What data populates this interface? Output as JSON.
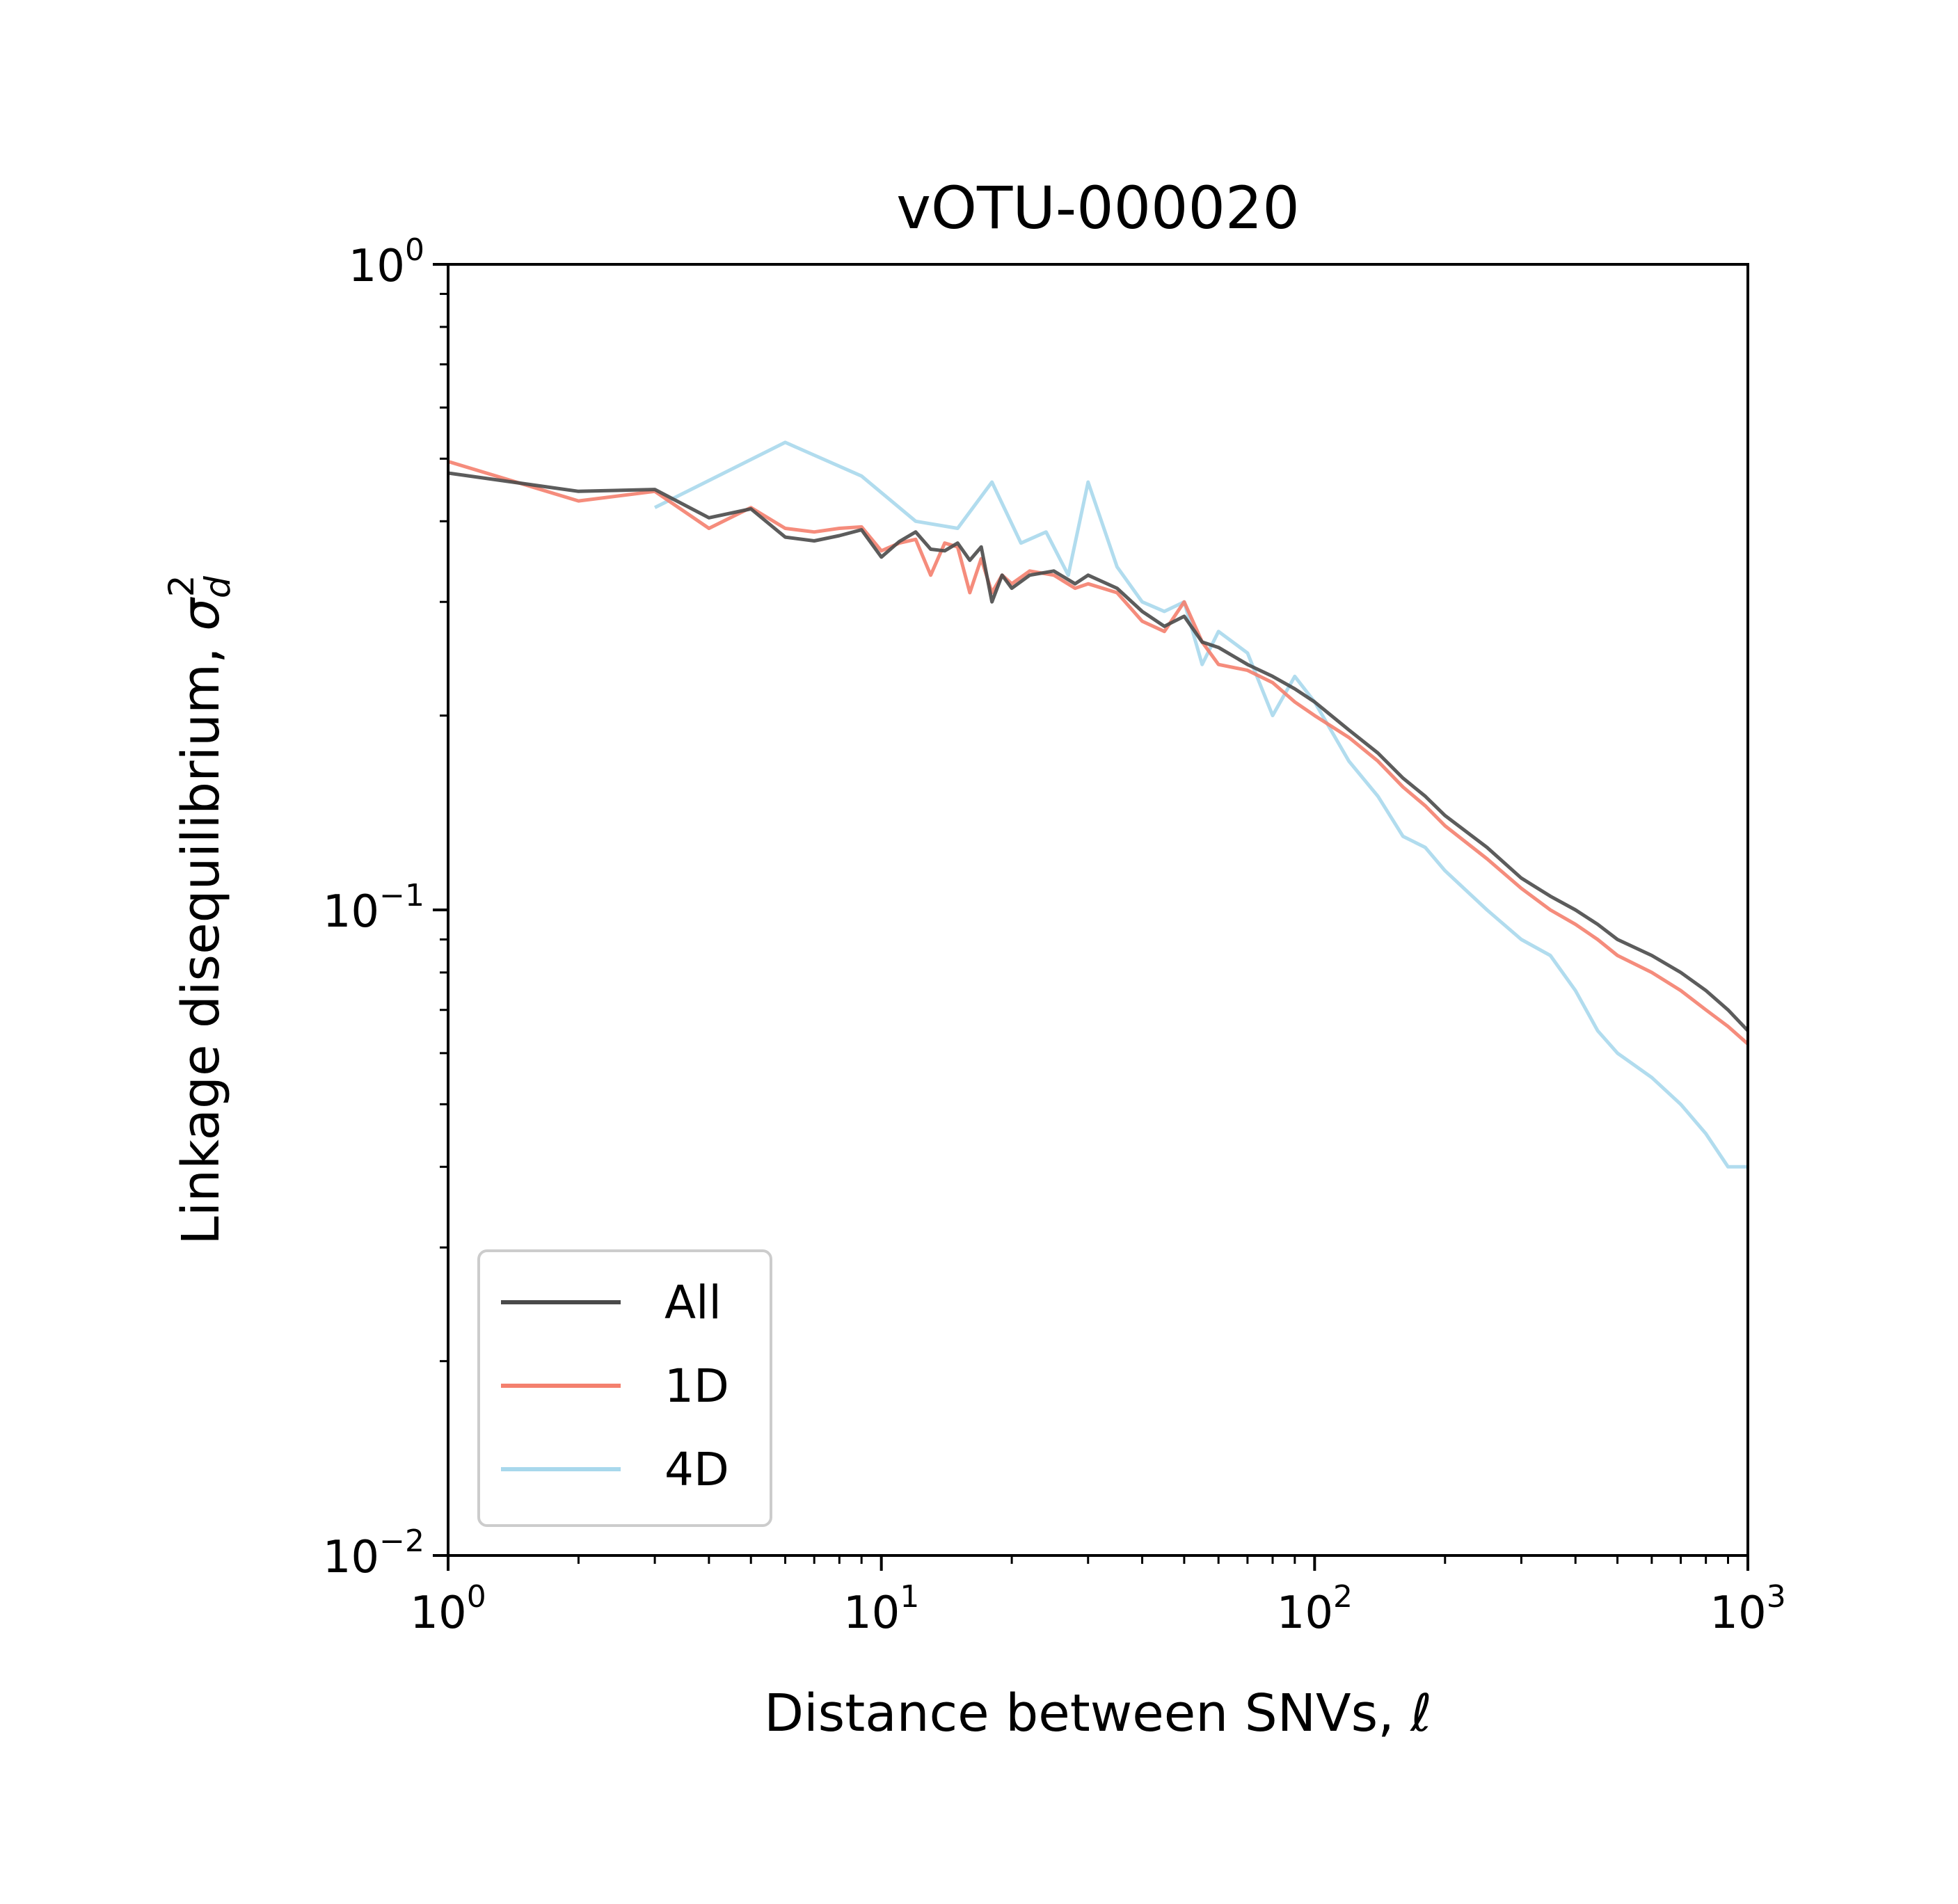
{
  "chart_data": {
    "type": "line",
    "title": "vOTU-000020",
    "xlabel": "Distance between SNVs, ℓ",
    "ylabel_prefix": "Linkage disequilibrium, ",
    "ylabel_symbol": "σ",
    "ylabel_sub": "d",
    "ylabel_sup": "2",
    "xscale": "log",
    "yscale": "log",
    "xlim": [
      1,
      1000
    ],
    "ylim": [
      0.01,
      1
    ],
    "x_ticks": [
      {
        "base": "10",
        "exp": "0"
      },
      {
        "base": "10",
        "exp": "1"
      },
      {
        "base": "10",
        "exp": "2"
      },
      {
        "base": "10",
        "exp": "3"
      }
    ],
    "y_ticks": [
      {
        "base": "10",
        "exp": "−2"
      },
      {
        "base": "10",
        "exp": "−1"
      },
      {
        "base": "10",
        "exp": "0"
      }
    ],
    "grid": false,
    "legend_position": "lower-left",
    "series": [
      {
        "name": "All",
        "color": "#4a4a4a",
        "x": [
          1,
          2,
          3,
          4,
          5,
          6,
          7,
          8,
          9,
          10,
          11,
          12,
          13,
          14,
          15,
          16,
          17,
          18,
          19,
          20,
          22,
          25,
          28,
          30,
          35,
          40,
          45,
          50,
          55,
          60,
          70,
          80,
          90,
          100,
          120,
          140,
          160,
          180,
          200,
          250,
          300,
          350,
          400,
          450,
          500,
          600,
          700,
          800,
          900,
          1000
        ],
        "y": [
          0.475,
          0.445,
          0.448,
          0.405,
          0.418,
          0.378,
          0.373,
          0.38,
          0.388,
          0.352,
          0.372,
          0.385,
          0.362,
          0.36,
          0.37,
          0.348,
          0.365,
          0.3,
          0.33,
          0.315,
          0.33,
          0.335,
          0.32,
          0.33,
          0.315,
          0.29,
          0.275,
          0.285,
          0.26,
          0.255,
          0.24,
          0.23,
          0.22,
          0.21,
          0.19,
          0.175,
          0.16,
          0.15,
          0.14,
          0.125,
          0.112,
          0.105,
          0.1,
          0.095,
          0.09,
          0.085,
          0.08,
          0.075,
          0.07,
          0.065
        ]
      },
      {
        "name": "1D",
        "color": "#f4806e",
        "x": [
          1,
          2,
          3,
          4,
          5,
          6,
          7,
          8,
          9,
          10,
          11,
          12,
          13,
          14,
          15,
          16,
          17,
          18,
          19,
          20,
          22,
          25,
          28,
          30,
          35,
          40,
          45,
          50,
          55,
          60,
          70,
          80,
          90,
          100,
          120,
          140,
          160,
          180,
          200,
          250,
          300,
          350,
          400,
          450,
          500,
          600,
          700,
          800,
          900,
          1000
        ],
        "y": [
          0.495,
          0.43,
          0.445,
          0.39,
          0.42,
          0.39,
          0.385,
          0.39,
          0.392,
          0.36,
          0.37,
          0.375,
          0.33,
          0.37,
          0.365,
          0.31,
          0.35,
          0.31,
          0.33,
          0.32,
          0.335,
          0.33,
          0.315,
          0.32,
          0.31,
          0.28,
          0.27,
          0.3,
          0.26,
          0.24,
          0.235,
          0.225,
          0.21,
          0.2,
          0.185,
          0.17,
          0.155,
          0.145,
          0.135,
          0.12,
          0.108,
          0.1,
          0.095,
          0.09,
          0.085,
          0.08,
          0.075,
          0.07,
          0.066,
          0.062
        ]
      },
      {
        "name": "4D",
        "color": "#a8d8ec",
        "x": [
          3,
          6,
          9,
          12,
          15,
          18,
          21,
          24,
          27,
          30,
          35,
          40,
          45,
          50,
          55,
          60,
          70,
          80,
          90,
          100,
          120,
          140,
          160,
          180,
          200,
          250,
          300,
          350,
          400,
          450,
          500,
          600,
          700,
          800,
          900,
          1000
        ],
        "y": [
          0.42,
          0.53,
          0.47,
          0.4,
          0.39,
          0.46,
          0.37,
          0.385,
          0.33,
          0.46,
          0.34,
          0.3,
          0.29,
          0.3,
          0.24,
          0.27,
          0.25,
          0.2,
          0.23,
          0.21,
          0.17,
          0.15,
          0.13,
          0.125,
          0.115,
          0.1,
          0.09,
          0.085,
          0.075,
          0.065,
          0.06,
          0.055,
          0.05,
          0.045,
          0.04,
          0.04
        ]
      }
    ]
  }
}
